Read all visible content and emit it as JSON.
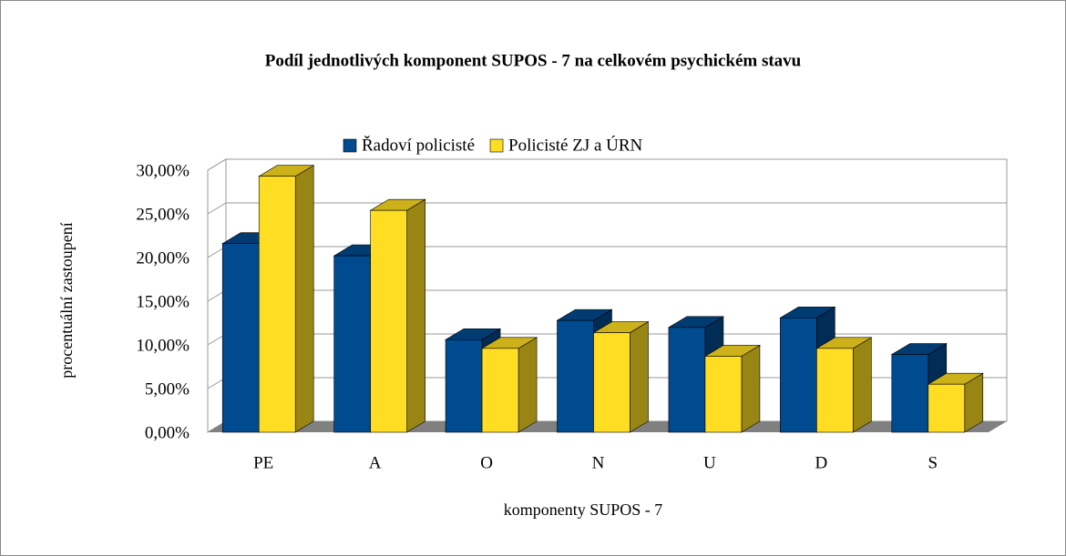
{
  "chart_data": {
    "type": "bar3d",
    "title": "Podíl jednotlivých komponent SUPOS - 7 na celkovém psychickém stavu",
    "xlabel": "komponenty SUPOS - 7",
    "ylabel": "procentuální zastoupení",
    "categories": [
      "PE",
      "A",
      "O",
      "N",
      "U",
      "D",
      "S"
    ],
    "series": [
      {
        "name": "Řadoví policisté",
        "color": "#004a8f",
        "values": [
          21.6,
          20.2,
          10.6,
          12.8,
          12.0,
          13.1,
          8.9
        ]
      },
      {
        "name": "Policisté ZJ a ÚRN",
        "color": "#ffdd22",
        "values": [
          29.3,
          25.4,
          9.6,
          11.4,
          8.7,
          9.6,
          5.5
        ]
      }
    ],
    "ylim": [
      0,
      30
    ],
    "yticks": [
      {
        "value": 0,
        "label": "0,00%"
      },
      {
        "value": 5,
        "label": "5,00%"
      },
      {
        "value": 10,
        "label": "10,00%"
      },
      {
        "value": 15,
        "label": "15,00%"
      },
      {
        "value": 20,
        "label": "20,00%"
      },
      {
        "value": 25,
        "label": "25,00%"
      },
      {
        "value": 30,
        "label": "30,00%"
      }
    ],
    "grid": true,
    "legend": "top"
  }
}
